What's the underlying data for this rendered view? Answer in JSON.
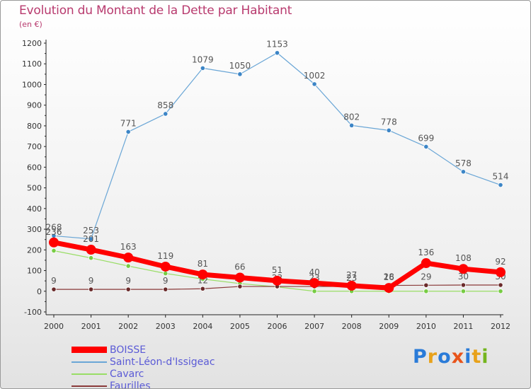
{
  "title": "Evolution du Montant de la Dette par Habitant",
  "subtitle": "(en €)",
  "logo": {
    "text": "Proxiti",
    "colors": [
      "#2a7bd8",
      "#e8a21b",
      "#2a7bd8",
      "#e8541b",
      "#2a7bd8",
      "#e8a21b",
      "#74b51e"
    ]
  },
  "chart_data": {
    "type": "line",
    "title": "Evolution du Montant de la Dette par Habitant",
    "ylabel": "(en €)",
    "xlabel": "",
    "ylim": [
      -100,
      1200
    ],
    "grid": false,
    "categories": [
      "2000",
      "2001",
      "2002",
      "2003",
      "2004",
      "2005",
      "2006",
      "2007",
      "2008",
      "2009",
      "2010",
      "2011",
      "2012"
    ],
    "yticks": [
      -100,
      0,
      100,
      200,
      300,
      400,
      500,
      600,
      700,
      800,
      900,
      1000,
      1100,
      1200
    ],
    "series": [
      {
        "name": "Saint-Léon-d'Issigeac",
        "color": "#6aa6d6",
        "marker": "#3c85c6",
        "width": 1.2,
        "labelled": true,
        "values": [
          268,
          253,
          771,
          858,
          1079,
          1050,
          1153,
          1002,
          802,
          778,
          699,
          578,
          514
        ]
      },
      {
        "name": "Cavarc",
        "color": "#99dd66",
        "marker": "#77cc44",
        "width": 1.2,
        "labelled": false,
        "values": [
          196,
          161,
          122,
          86,
          59,
          37,
          21,
          0,
          0,
          0,
          0,
          0,
          0
        ]
      },
      {
        "name": "Faurilles",
        "color": "#8a3a3a",
        "marker": "#6a2a2a",
        "width": 1.2,
        "labelled": true,
        "values": [
          9,
          9,
          9,
          9,
          12,
          23,
          23,
          23,
          23,
          28,
          29,
          30,
          30
        ]
      },
      {
        "name": "BOISSE",
        "color": "#ff0000",
        "marker": "#ff0000",
        "width": 7,
        "labelled": true,
        "values": [
          236,
          201,
          163,
          119,
          81,
          66,
          51,
          40,
          27,
          16,
          136,
          108,
          92
        ]
      }
    ],
    "legend": [
      "BOISSE",
      "Saint-Léon-d'Issigeac",
      "Cavarc",
      "Faurilles"
    ],
    "legend_position": "bottom-left"
  }
}
